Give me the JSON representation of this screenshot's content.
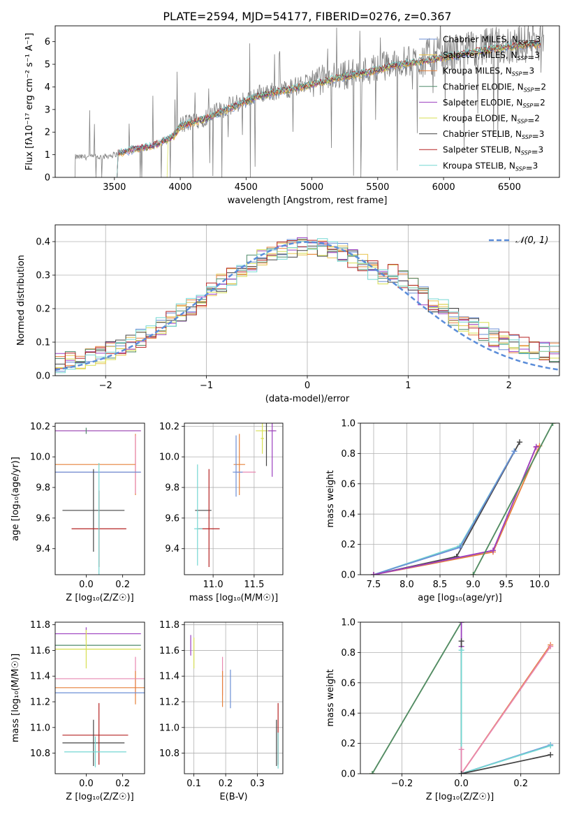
{
  "chart_data": [
    {
      "id": "spectrum",
      "type": "line",
      "title": "PLATE=2594, MJD=54177, FIBERID=0276, z=0.367",
      "xlabel": "wavelength [Angstrom, rest frame]",
      "ylabel": "Flux [fλ10⁻¹⁷ erg cm⁻² s⁻¹ A⁻¹]",
      "xlim": [
        3050,
        6880
      ],
      "ylim": [
        0,
        6.7
      ],
      "xticks": [
        3500,
        4000,
        4500,
        5000,
        5500,
        6000,
        6500
      ],
      "yticks": [
        0,
        1,
        2,
        3,
        4,
        5,
        6
      ],
      "grid": false,
      "legend_position": "right",
      "legend": [
        {
          "name": "Chabrier MILES",
          "nssp": "3",
          "color": "#6b8fd6"
        },
        {
          "name": "Salpeter MILES",
          "nssp": "3",
          "color": "#e8c24a"
        },
        {
          "name": "Kroupa MILES",
          "nssp": "3",
          "color": "#e6803a"
        },
        {
          "name": "Chabrier ELODIE",
          "nssp": "2",
          "color": "#4f8a6a"
        },
        {
          "name": "Salpeter ELODIE",
          "nssp": "2",
          "color": "#9b3fbf"
        },
        {
          "name": "Kroupa ELODIE",
          "nssp": "2",
          "color": "#d7df52"
        },
        {
          "name": "Chabrier STELIB",
          "nssp": "3",
          "color": "#444444"
        },
        {
          "name": "Salpeter STELIB",
          "nssp": "3",
          "color": "#b52222"
        },
        {
          "name": "Kroupa STELIB",
          "nssp": "3",
          "color": "#74d7d2"
        }
      ],
      "data_continuum": {
        "x": [
          3200,
          3400,
          3500,
          3650,
          3800,
          3950,
          4000,
          4200,
          4400,
          4600,
          4800,
          5000,
          5200,
          5400,
          5600,
          5800,
          6000,
          6200,
          6400,
          6600,
          6750
        ],
        "y": [
          0.9,
          0.9,
          1.0,
          1.3,
          1.4,
          1.9,
          2.3,
          2.7,
          3.2,
          3.7,
          3.9,
          4.2,
          4.5,
          4.7,
          5.0,
          5.2,
          5.4,
          5.6,
          5.8,
          5.9,
          6.0
        ]
      },
      "model_continuum": {
        "x": [
          3500,
          3650,
          3800,
          3950,
          4000,
          4200,
          4400,
          4600,
          4800,
          5000,
          5200,
          5400,
          5600,
          5800,
          6000,
          6200,
          6400,
          6600,
          6750
        ],
        "y": [
          1.0,
          1.25,
          1.4,
          1.8,
          2.25,
          2.6,
          3.1,
          3.6,
          3.85,
          4.1,
          4.4,
          4.6,
          4.9,
          5.1,
          5.3,
          5.5,
          5.7,
          5.85,
          5.9
        ]
      }
    },
    {
      "id": "residuals",
      "type": "step",
      "xlabel": "(data-model)/error",
      "ylabel": "Normed distribution",
      "xlim": [
        -2.5,
        2.5
      ],
      "ylim": [
        0,
        0.45
      ],
      "xticks": [
        -2,
        -1,
        0,
        1,
        2
      ],
      "yticks": [
        0.0,
        0.1,
        0.2,
        0.3,
        0.4
      ],
      "grid": true,
      "legend_position": "top-right",
      "reference_label": "𝒩(0, 1)",
      "reference_color": "#5b8dd9",
      "bin_width": 0.1
    },
    {
      "id": "age_vs_Z",
      "type": "errorbar",
      "xlabel": "Z [log₁₀(Z/Z☉)]",
      "ylabel": "age  [log₁₀(age/yr)]",
      "xlim": [
        -0.17,
        0.32
      ],
      "ylim": [
        9.23,
        10.22
      ],
      "xticks": [
        0.0,
        0.2
      ],
      "yticks": [
        9.4,
        9.6,
        9.8,
        10.0,
        10.2
      ],
      "grid": false,
      "points": [
        {
          "x": 0.0,
          "y": 10.17,
          "xerr": 0.3,
          "yerr": 0.0,
          "color": "#d7df52"
        },
        {
          "x": 0.0,
          "y": 10.17,
          "xerr": 0.3,
          "yerr": 0.0,
          "color": "#9b3fbf"
        },
        {
          "x": 0.0,
          "y": 10.17,
          "xerr": 0.0,
          "yerr": 0.02,
          "color": "#4f8a6a"
        },
        {
          "x": 0.27,
          "y": 9.95,
          "xerr": 0.0,
          "yerr": 0.2,
          "color": "#e6803a"
        },
        {
          "x": 0.27,
          "y": 9.95,
          "xerr": 0.0,
          "yerr": 0.19,
          "color": "#e887b0"
        },
        {
          "x": 0.0,
          "y": 9.95,
          "xerr": 0.27,
          "yerr": 0.0,
          "color": "#e6803a"
        },
        {
          "x": 0.0,
          "y": 9.9,
          "xerr": 0.3,
          "yerr": 0.0,
          "color": "#e887b0"
        },
        {
          "x": 0.0,
          "y": 9.9,
          "xerr": 0.3,
          "yerr": 0.0,
          "color": "#6b8fd6"
        },
        {
          "x": 0.04,
          "y": 9.65,
          "xerr": 0.17,
          "yerr": 0.27,
          "color": "#444444"
        },
        {
          "x": 0.07,
          "y": 9.53,
          "xerr": 0.15,
          "yerr": 0.25,
          "color": "#b52222"
        },
        {
          "x": 0.07,
          "y": 9.53,
          "xerr": 0.0,
          "yerr": 0.43,
          "color": "#74d7d2"
        }
      ]
    },
    {
      "id": "age_vs_mass",
      "type": "errorbar",
      "xlabel": "mass [log₁₀(M/M☉)]",
      "xlim": [
        10.65,
        11.85
      ],
      "ylim": [
        9.23,
        10.22
      ],
      "xticks": [
        11.0,
        11.5
      ],
      "yticks": [
        9.4,
        9.6,
        9.8,
        10.0,
        10.2
      ],
      "grid": true,
      "points": [
        {
          "x": 11.64,
          "y": 10.17,
          "xerr": 0.12,
          "yerr": 0.0,
          "color": "#d7df52"
        },
        {
          "x": 11.72,
          "y": 10.17,
          "xerr": 0.05,
          "yerr": 0.3,
          "color": "#9b3fbf"
        },
        {
          "x": 11.6,
          "y": 10.12,
          "xerr": 0.02,
          "yerr": 0.1,
          "color": "#d7df52"
        },
        {
          "x": 11.65,
          "y": 10.09,
          "xerr": 0.0,
          "yerr": 0.15,
          "color": "#444444"
        },
        {
          "x": 11.32,
          "y": 9.95,
          "xerr": 0.07,
          "yerr": 0.2,
          "color": "#e6803a"
        },
        {
          "x": 11.28,
          "y": 9.94,
          "xerr": 0.0,
          "yerr": 0.2,
          "color": "#6b8fd6"
        },
        {
          "x": 11.4,
          "y": 9.9,
          "xerr": 0.12,
          "yerr": 0.0,
          "color": "#e887b0"
        },
        {
          "x": 11.3,
          "y": 9.9,
          "xerr": 0.06,
          "yerr": 0.0,
          "color": "#6b8fd6"
        },
        {
          "x": 10.88,
          "y": 9.65,
          "xerr": 0.1,
          "yerr": 0.0,
          "color": "#444444"
        },
        {
          "x": 10.95,
          "y": 9.53,
          "xerr": 0.13,
          "yerr": 0.0,
          "color": "#b52222"
        },
        {
          "x": 10.82,
          "y": 9.53,
          "xerr": 0.05,
          "yerr": 0.0,
          "color": "#74d7d2"
        },
        {
          "x": 10.81,
          "y": 9.62,
          "xerr": 0.0,
          "yerr": 0.33,
          "color": "#74d7d2"
        },
        {
          "x": 10.95,
          "y": 9.6,
          "xerr": 0.0,
          "yerr": 0.32,
          "color": "#b52222"
        }
      ]
    },
    {
      "id": "weight_vs_age",
      "type": "line",
      "xlabel": "age  [log₁₀(age/yr)]",
      "ylabel": "mass weight",
      "xlim": [
        7.3,
        10.3
      ],
      "ylim": [
        0,
        1
      ],
      "xticks": [
        7.5,
        8.0,
        8.5,
        9.0,
        9.5,
        10.0
      ],
      "yticks": [
        0.0,
        0.2,
        0.4,
        0.6,
        0.8,
        1.0
      ],
      "grid": true,
      "series": [
        {
          "color": "#444444",
          "x": [
            7.5,
            8.75,
            9.7
          ],
          "y": [
            0.0,
            0.12,
            0.875
          ]
        },
        {
          "color": "#74d7d2",
          "x": [
            7.5,
            8.8,
            9.62
          ],
          "y": [
            0.0,
            0.19,
            0.815
          ]
        },
        {
          "color": "#6b8fd6",
          "x": [
            7.5,
            8.8,
            9.62
          ],
          "y": [
            0.0,
            0.18,
            0.815
          ]
        },
        {
          "color": "#e6803a",
          "x": [
            7.5,
            9.3,
            10.0
          ],
          "y": [
            0.0,
            0.15,
            0.85
          ]
        },
        {
          "color": "#e887b0",
          "x": [
            7.5,
            9.3,
            9.95
          ],
          "y": [
            0.0,
            0.16,
            0.84
          ]
        },
        {
          "color": "#9b3fbf",
          "x": [
            7.5,
            9.3,
            9.95
          ],
          "y": [
            0.0,
            0.16,
            0.845
          ]
        },
        {
          "color": "#d7df52",
          "x": [
            9.0,
            10.2
          ],
          "y": [
            0.0,
            1.0
          ]
        },
        {
          "color": "#4f8a6a",
          "x": [
            9.0,
            10.2
          ],
          "y": [
            0.0,
            1.0
          ]
        }
      ]
    },
    {
      "id": "mass_vs_Z",
      "type": "errorbar",
      "xlabel": "Z [log₁₀(Z/Z☉)]",
      "ylabel": "mass [log₁₀(M/M☉)]",
      "xlim": [
        -0.17,
        0.32
      ],
      "ylim": [
        10.64,
        11.82
      ],
      "xticks": [
        0.0,
        0.2
      ],
      "yticks": [
        10.8,
        11.0,
        11.2,
        11.4,
        11.6,
        11.8
      ],
      "grid": false,
      "points": [
        {
          "x": 0.0,
          "y": 11.73,
          "xerr": 0.3,
          "yerr": 0.05,
          "color": "#9b3fbf"
        },
        {
          "x": 0.0,
          "y": 11.64,
          "xerr": 0.3,
          "yerr": 0.0,
          "color": "#4f8a6a"
        },
        {
          "x": 0.0,
          "y": 11.61,
          "xerr": 0.3,
          "yerr": 0.15,
          "color": "#d7df52"
        },
        {
          "x": 0.27,
          "y": 11.4,
          "xerr": 0.0,
          "yerr": 0.15,
          "color": "#e887b0"
        },
        {
          "x": 0.27,
          "y": 11.31,
          "xerr": 0.0,
          "yerr": 0.13,
          "color": "#e6803a"
        },
        {
          "x": 0.05,
          "y": 11.38,
          "xerr": 0.27,
          "yerr": 0.0,
          "color": "#e887b0"
        },
        {
          "x": 0.05,
          "y": 11.31,
          "xerr": 0.27,
          "yerr": 0.0,
          "color": "#e6803a"
        },
        {
          "x": 0.05,
          "y": 11.27,
          "xerr": 0.27,
          "yerr": 0.0,
          "color": "#6b8fd6"
        },
        {
          "x": 0.05,
          "y": 10.94,
          "xerr": 0.18,
          "yerr": 0.0,
          "color": "#b52222"
        },
        {
          "x": 0.04,
          "y": 10.88,
          "xerr": 0.17,
          "yerr": 0.18,
          "color": "#444444"
        },
        {
          "x": 0.07,
          "y": 10.95,
          "xerr": 0.0,
          "yerr": 0.24,
          "color": "#b52222"
        },
        {
          "x": 0.05,
          "y": 10.81,
          "xerr": 0.17,
          "yerr": 0.12,
          "color": "#74d7d2"
        }
      ]
    },
    {
      "id": "mass_vs_EBV",
      "type": "errorbar",
      "xlabel": "E(B-V)",
      "xlim": [
        0.07,
        0.38
      ],
      "ylim": [
        10.64,
        11.82
      ],
      "xticks": [
        0.1,
        0.2,
        0.3
      ],
      "yticks": [
        10.8,
        11.0,
        11.2,
        11.4,
        11.6,
        11.8
      ],
      "grid": true,
      "points": [
        {
          "x": 0.09,
          "y": 11.64,
          "xerr": 0.0,
          "yerr": 0.08,
          "color": "#9b3fbf"
        },
        {
          "x": 0.1,
          "y": 11.58,
          "xerr": 0.0,
          "yerr": 0.12,
          "color": "#d7df52"
        },
        {
          "x": 0.19,
          "y": 11.4,
          "xerr": 0.0,
          "yerr": 0.15,
          "color": "#e887b0"
        },
        {
          "x": 0.19,
          "y": 11.3,
          "xerr": 0.0,
          "yerr": 0.14,
          "color": "#e6803a"
        },
        {
          "x": 0.215,
          "y": 11.3,
          "xerr": 0.0,
          "yerr": 0.15,
          "color": "#6b8fd6"
        },
        {
          "x": 0.365,
          "y": 10.95,
          "xerr": 0.0,
          "yerr": 0.24,
          "color": "#b52222"
        },
        {
          "x": 0.36,
          "y": 10.88,
          "xerr": 0.0,
          "yerr": 0.18,
          "color": "#444444"
        },
        {
          "x": 0.365,
          "y": 10.82,
          "xerr": 0.0,
          "yerr": 0.14,
          "color": "#74d7d2"
        }
      ]
    },
    {
      "id": "weight_vs_Z",
      "type": "line",
      "xlabel": "Z [log₁₀(Z/Z☉)]",
      "ylabel": "mass weight",
      "xlim": [
        -0.34,
        0.33
      ],
      "ylim": [
        0,
        1
      ],
      "xticks": [
        -0.2,
        0.0,
        0.2
      ],
      "yticks": [
        0.0,
        0.2,
        0.4,
        0.6,
        0.8,
        1.0
      ],
      "grid": true,
      "series": [
        {
          "color": "#d7df52",
          "x": [
            -0.3,
            0.0
          ],
          "y": [
            0.0,
            1.0
          ]
        },
        {
          "color": "#4f8a6a",
          "x": [
            -0.3,
            0.0
          ],
          "y": [
            0.0,
            1.0
          ]
        },
        {
          "color": "#9b3fbf",
          "x": [
            0.0,
            0.0
          ],
          "y": [
            0.84,
            1.0
          ]
        },
        {
          "color": "#444444",
          "x": [
            0.0,
            0.0
          ],
          "y": [
            0.0,
            0.875
          ]
        },
        {
          "color": "#74d7d2",
          "x": [
            0.0,
            0.0
          ],
          "y": [
            0.0,
            0.815
          ]
        },
        {
          "color": "#e887b0",
          "x": [
            0.0,
            0.0
          ],
          "y": [
            0.0,
            0.16
          ]
        },
        {
          "color": "#e6803a",
          "x": [
            0.0,
            0.3
          ],
          "y": [
            0.0,
            0.85
          ]
        },
        {
          "color": "#e887b0",
          "x": [
            0.0,
            0.3
          ],
          "y": [
            0.0,
            0.84
          ]
        },
        {
          "color": "#6b8fd6",
          "x": [
            0.0,
            0.3
          ],
          "y": [
            0.0,
            0.19
          ]
        },
        {
          "color": "#74d7d2",
          "x": [
            0.0,
            0.3
          ],
          "y": [
            0.0,
            0.185
          ]
        },
        {
          "color": "#444444",
          "x": [
            0.0,
            0.3
          ],
          "y": [
            0.0,
            0.125
          ]
        }
      ]
    }
  ]
}
